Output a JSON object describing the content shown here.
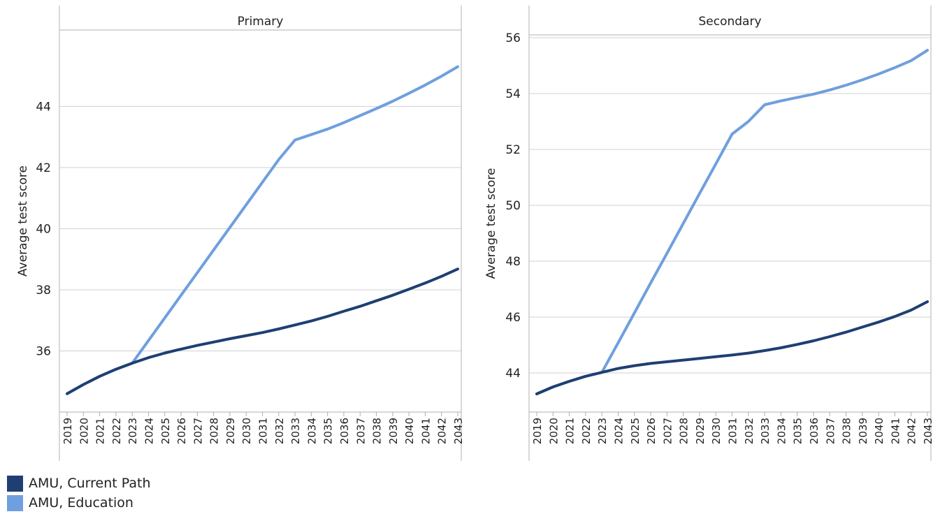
{
  "colors": {
    "current_path": "#1f3f73",
    "education": "#6f9fde",
    "grid": "#d0d0d0",
    "axis": "#b0b0b0"
  },
  "legend": [
    {
      "label": "AMU, Current Path",
      "color": "#1f3f73"
    },
    {
      "label": "AMU, Education",
      "color": "#6f9fde"
    }
  ],
  "chart_data": [
    {
      "type": "line",
      "title": "Primary",
      "ylabel": "Average test score",
      "xlabel": "",
      "ylim": [
        34,
        46.5
      ],
      "yticks": [
        36,
        38,
        40,
        42,
        44
      ],
      "x": [
        "2019",
        "2020",
        "2021",
        "2022",
        "2023",
        "2024",
        "2025",
        "2026",
        "2027",
        "2028",
        "2029",
        "2030",
        "2031",
        "2032",
        "2033",
        "2034",
        "2035",
        "2036",
        "2037",
        "2038",
        "2039",
        "2040",
        "2041",
        "2042",
        "2043"
      ],
      "series": [
        {
          "name": "AMU, Current Path",
          "color": "#1f3f73",
          "values": [
            34.6,
            34.9,
            35.17,
            35.4,
            35.6,
            35.78,
            35.93,
            36.06,
            36.18,
            36.29,
            36.4,
            36.5,
            36.6,
            36.72,
            36.85,
            36.98,
            37.13,
            37.3,
            37.46,
            37.64,
            37.82,
            38.02,
            38.22,
            38.44,
            38.68
          ]
        },
        {
          "name": "AMU, Education",
          "color": "#6f9fde",
          "values": [
            34.6,
            34.9,
            35.17,
            35.4,
            35.6,
            36.34,
            37.08,
            37.82,
            38.56,
            39.3,
            40.04,
            40.78,
            41.52,
            42.26,
            42.9,
            43.08,
            43.26,
            43.47,
            43.7,
            43.93,
            44.17,
            44.43,
            44.7,
            44.99,
            45.3
          ]
        }
      ]
    },
    {
      "type": "line",
      "title": "Secondary",
      "ylabel": "Average test score",
      "xlabel": "",
      "ylim": [
        42.6,
        56.1
      ],
      "yticks": [
        44,
        46,
        48,
        50,
        52,
        54,
        56
      ],
      "x": [
        "2019",
        "2020",
        "2021",
        "2022",
        "2023",
        "2024",
        "2025",
        "2026",
        "2027",
        "2028",
        "2029",
        "2030",
        "2031",
        "2032",
        "2033",
        "2034",
        "2035",
        "2036",
        "2037",
        "2038",
        "2039",
        "2040",
        "2041",
        "2042",
        "2043"
      ],
      "series": [
        {
          "name": "AMU, Current Path",
          "color": "#1f3f73",
          "values": [
            43.25,
            43.5,
            43.7,
            43.88,
            44.02,
            44.16,
            44.26,
            44.34,
            44.4,
            44.46,
            44.52,
            44.58,
            44.64,
            44.71,
            44.8,
            44.9,
            45.02,
            45.15,
            45.3,
            45.46,
            45.64,
            45.82,
            46.02,
            46.25,
            46.55
          ]
        },
        {
          "name": "AMU, Education",
          "color": "#6f9fde",
          "values": [
            43.25,
            43.5,
            43.7,
            43.88,
            44.02,
            45.08,
            46.15,
            47.22,
            48.28,
            49.35,
            50.42,
            51.48,
            52.55,
            53.0,
            53.6,
            53.74,
            53.86,
            53.98,
            54.13,
            54.3,
            54.49,
            54.7,
            54.93,
            55.18,
            55.55
          ]
        }
      ]
    }
  ]
}
